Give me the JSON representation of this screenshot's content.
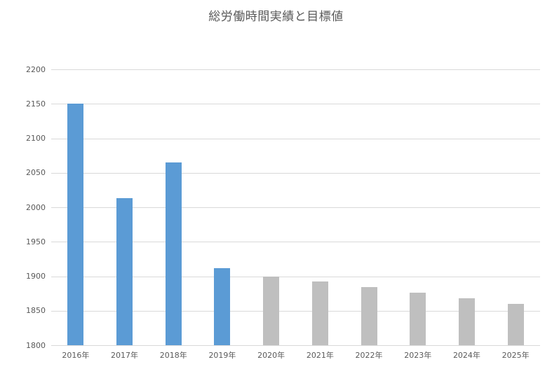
{
  "page": {
    "background_color": "#ffffff"
  },
  "chart_data": {
    "type": "bar",
    "title": "総労働時間実績と目標値",
    "categories": [
      "2016年",
      "2017年",
      "2018年",
      "2019年",
      "2020年",
      "2021年",
      "2022年",
      "2023年",
      "2024年",
      "2025年"
    ],
    "series": [
      {
        "name": "実績",
        "color": "#5b9bd5",
        "values": [
          2150,
          2013,
          2065,
          1912,
          null,
          null,
          null,
          null,
          null,
          null
        ]
      },
      {
        "name": "目標値",
        "color": "#bfbfbf",
        "values": [
          null,
          null,
          null,
          null,
          1900,
          1892,
          1884,
          1876,
          1868,
          1860
        ]
      }
    ],
    "xlabel": "",
    "ylabel": "",
    "ylim": [
      1800,
      2200
    ],
    "ytick_step": 50,
    "yticks": [
      1800,
      1850,
      1900,
      1950,
      2000,
      2050,
      2100,
      2150,
      2200
    ],
    "grid": true,
    "legend_position": "none",
    "colors": {
      "gridline": "#d9d9d9",
      "axis_text": "#595959",
      "title_text": "#595959"
    }
  }
}
